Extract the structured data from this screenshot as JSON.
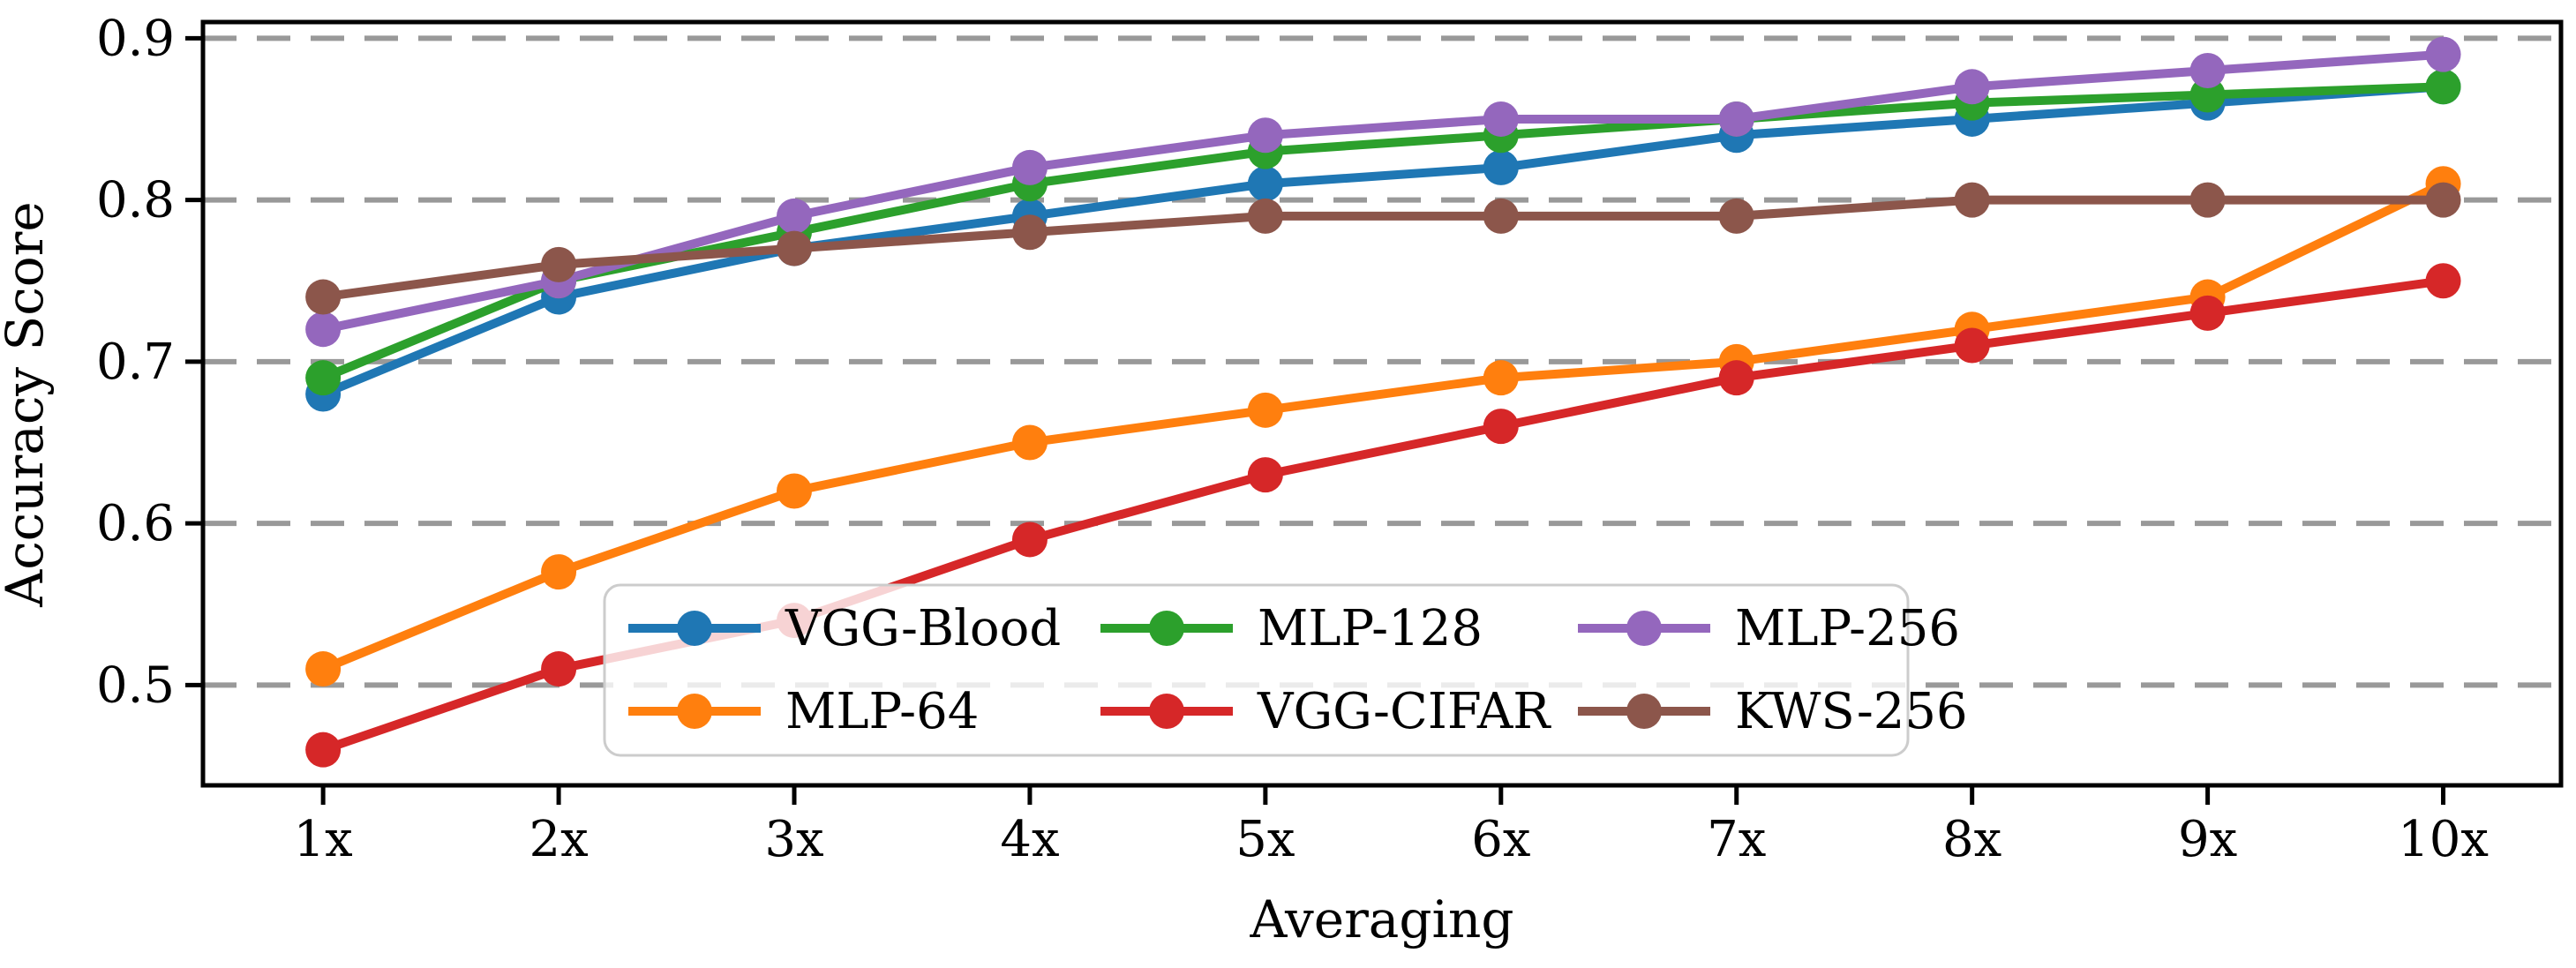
{
  "figure": {
    "background": "#ffffff",
    "spine_color": "#000000",
    "grid_color": "#999999",
    "tick_label_color": "#000000"
  },
  "chart_data": {
    "type": "line",
    "title": "",
    "xlabel": "Averaging",
    "ylabel": "Accuracy Score",
    "x": [
      1,
      2,
      3,
      4,
      5,
      6,
      7,
      8,
      9,
      10
    ],
    "x_tick_labels": [
      "1x",
      "2x",
      "3x",
      "4x",
      "5x",
      "6x",
      "7x",
      "8x",
      "9x",
      "10x"
    ],
    "y_ticks": [
      0.5,
      0.6,
      0.7,
      0.8,
      0.9
    ],
    "y_tick_labels": [
      "0.5",
      "0.6",
      "0.7",
      "0.8",
      "0.9"
    ],
    "xlim": [
      0.49,
      10.5
    ],
    "ylim": [
      0.438,
      0.91
    ],
    "grid": "horizontal-dashed",
    "legend": {
      "location": "lower-center-inside",
      "columns": 3,
      "order": "column-major",
      "frame": true,
      "frame_alpha": 0.8
    },
    "series": [
      {
        "name": "VGG-Blood",
        "color": "#1f77b4",
        "marker": "circle",
        "values": [
          0.68,
          0.74,
          0.77,
          0.79,
          0.81,
          0.82,
          0.84,
          0.85,
          0.86,
          0.87
        ]
      },
      {
        "name": "MLP-64",
        "color": "#ff7f0e",
        "marker": "circle",
        "values": [
          0.51,
          0.57,
          0.62,
          0.65,
          0.67,
          0.69,
          0.7,
          0.72,
          0.74,
          0.81
        ]
      },
      {
        "name": "MLP-128",
        "color": "#2ca02c",
        "marker": "circle",
        "values": [
          0.69,
          0.75,
          0.78,
          0.81,
          0.83,
          0.84,
          0.85,
          0.86,
          0.865,
          0.87
        ]
      },
      {
        "name": "VGG-CIFAR",
        "color": "#d62728",
        "marker": "circle",
        "values": [
          0.46,
          0.51,
          0.54,
          0.59,
          0.63,
          0.66,
          0.69,
          0.71,
          0.73,
          0.75
        ]
      },
      {
        "name": "MLP-256",
        "color": "#9467bd",
        "marker": "circle",
        "values": [
          0.72,
          0.75,
          0.79,
          0.82,
          0.84,
          0.85,
          0.85,
          0.87,
          0.88,
          0.89
        ]
      },
      {
        "name": "KWS-256",
        "color": "#8c564b",
        "marker": "circle",
        "values": [
          0.74,
          0.76,
          0.77,
          0.78,
          0.79,
          0.79,
          0.79,
          0.8,
          0.8,
          0.8
        ]
      }
    ]
  }
}
